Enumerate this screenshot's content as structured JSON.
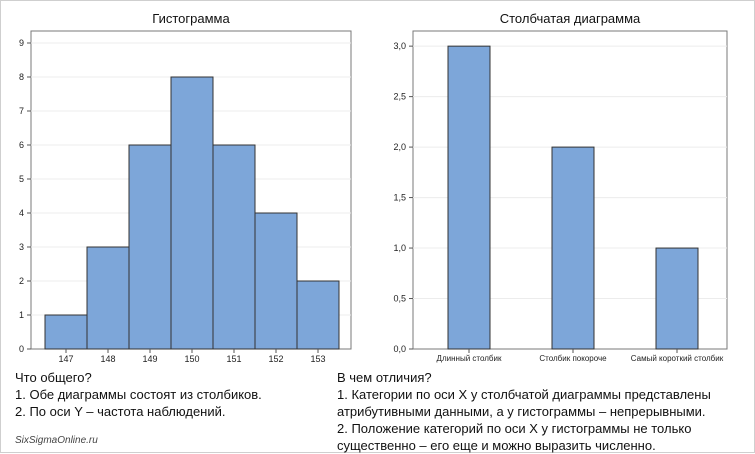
{
  "chart_data": [
    {
      "type": "bar",
      "subtype": "histogram",
      "title": "Гистограмма",
      "categories": [
        "147",
        "148",
        "149",
        "150",
        "151",
        "152",
        "153"
      ],
      "values": [
        1,
        3,
        6,
        8,
        6,
        4,
        2
      ],
      "y_ticks": [
        "0",
        "1",
        "2",
        "3",
        "4",
        "5",
        "6",
        "7",
        "8",
        "9"
      ],
      "ylim": [
        0,
        9
      ],
      "grid": true,
      "bar_color": "#7da6d9",
      "bar_edge": "#333333"
    },
    {
      "type": "bar",
      "title": "Столбчатая диаграмма",
      "categories": [
        "Длинный столбик",
        "Столбик покороче",
        "Самый короткий столбик"
      ],
      "values": [
        3.0,
        2.0,
        1.0
      ],
      "y_ticks": [
        "0,0",
        "0,5",
        "1,0",
        "1,5",
        "2,0",
        "2,5",
        "3,0"
      ],
      "ylim": [
        0,
        3.15
      ],
      "grid": true,
      "bar_color": "#7da6d9",
      "bar_edge": "#333333"
    }
  ],
  "notes": {
    "left": {
      "heading": "Что общего?",
      "items": [
        "1. Обе диаграммы состоят из столбиков.",
        "2. По оси Y – частота наблюдений."
      ]
    },
    "right": {
      "heading": "В чем отличия?",
      "items": [
        "1. Категории по оси X у столбчатой диаграммы представлены атрибутивными данными, а у гистограммы – непрерывными.",
        "2. Положение категорий по оси X у гистограммы не только существенно – его еще и можно выразить численно."
      ]
    }
  },
  "footer": {
    "site": "SixSigmaOnline.ru"
  }
}
